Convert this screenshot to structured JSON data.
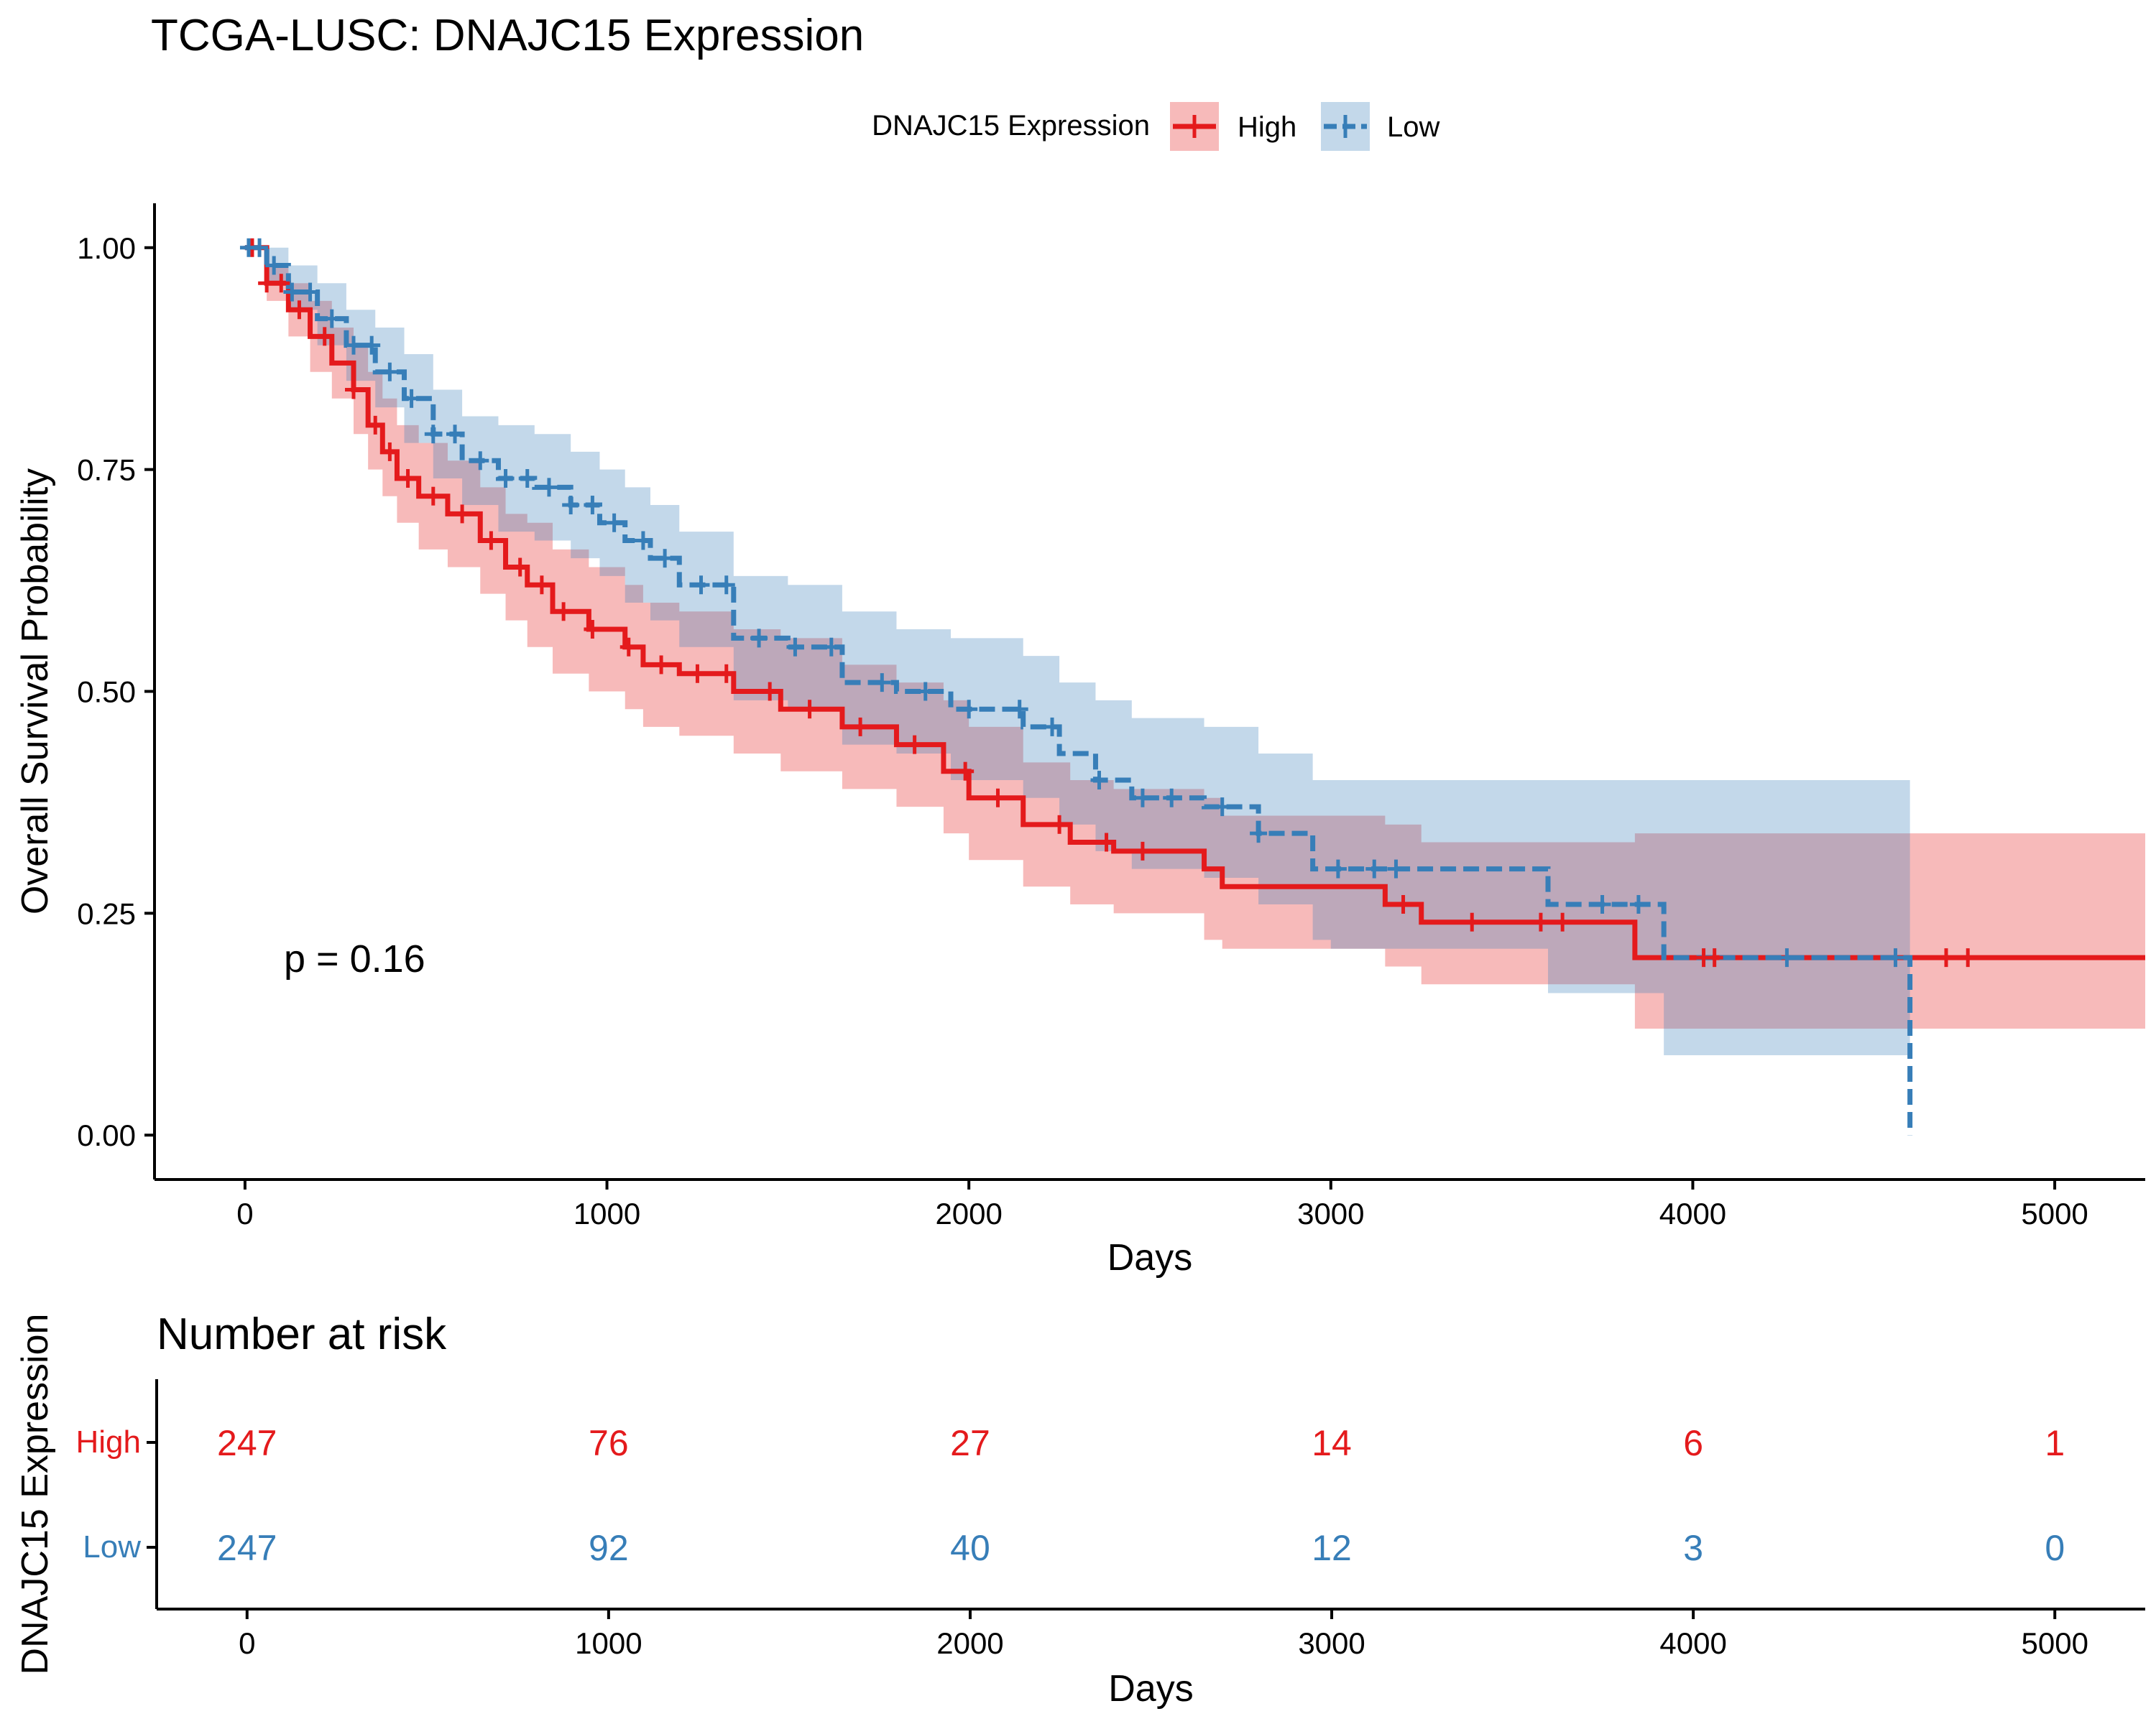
{
  "title": "TCGA-LUSC: DNAJC15 Expression",
  "legend": {
    "title": "DNAJC15 Expression",
    "placement": "top",
    "items": [
      {
        "label": "High",
        "color": "#E41A1C",
        "linestyle": "solid"
      },
      {
        "label": "Low",
        "color": "#377EB8",
        "linestyle": "dashed"
      }
    ]
  },
  "p_value_label": "p = 0.16",
  "chart_data": [
    {
      "type": "line",
      "subtype": "kaplan-meier step survival curve with confidence bands and censor marks",
      "title": "TCGA-LUSC: DNAJC15 Expression",
      "xlabel": "Days",
      "ylabel": "Overall Survival Probability",
      "xlim": [
        -250,
        5250
      ],
      "ylim": [
        -0.05,
        1.05
      ],
      "x_ticks": [
        0,
        1000,
        2000,
        3000,
        4000,
        5000
      ],
      "y_ticks": [
        0,
        0.25,
        0.5,
        0.75,
        1.0
      ],
      "y_tick_labels": [
        "0.00",
        "0.25",
        "0.50",
        "0.75",
        "1.00"
      ],
      "grid": false,
      "legend_placement": "top",
      "series": [
        {
          "name": "High",
          "color": "#E41A1C",
          "linestyle": "solid",
          "x": [
            0,
            60,
            120,
            180,
            240,
            300,
            340,
            380,
            420,
            480,
            560,
            650,
            720,
            780,
            850,
            950,
            1050,
            1100,
            1200,
            1350,
            1480,
            1650,
            1800,
            1930,
            2000,
            2150,
            2280,
            2400,
            2650,
            2700,
            3150,
            3250,
            3840,
            4000,
            4500,
            5250
          ],
          "y": [
            1.0,
            0.96,
            0.93,
            0.9,
            0.87,
            0.84,
            0.8,
            0.77,
            0.74,
            0.72,
            0.7,
            0.67,
            0.64,
            0.62,
            0.59,
            0.57,
            0.55,
            0.53,
            0.52,
            0.5,
            0.48,
            0.46,
            0.44,
            0.41,
            0.38,
            0.35,
            0.33,
            0.32,
            0.3,
            0.28,
            0.26,
            0.24,
            0.2,
            0.2,
            0.2,
            0.2
          ],
          "lower": [
            1.0,
            0.94,
            0.9,
            0.86,
            0.83,
            0.79,
            0.75,
            0.72,
            0.69,
            0.66,
            0.64,
            0.61,
            0.58,
            0.55,
            0.52,
            0.5,
            0.48,
            0.46,
            0.45,
            0.43,
            0.41,
            0.39,
            0.37,
            0.34,
            0.31,
            0.28,
            0.26,
            0.25,
            0.22,
            0.21,
            0.19,
            0.17,
            0.12,
            0.12,
            0.12,
            0.12
          ],
          "upper": [
            1.0,
            0.98,
            0.96,
            0.94,
            0.91,
            0.89,
            0.86,
            0.83,
            0.8,
            0.78,
            0.76,
            0.73,
            0.7,
            0.69,
            0.66,
            0.64,
            0.62,
            0.6,
            0.59,
            0.57,
            0.56,
            0.53,
            0.51,
            0.49,
            0.46,
            0.42,
            0.4,
            0.39,
            0.38,
            0.36,
            0.35,
            0.33,
            0.34,
            0.34,
            0.34,
            0.34
          ],
          "censor_x": [
            20,
            60,
            100,
            150,
            220,
            300,
            360,
            400,
            450,
            520,
            600,
            680,
            760,
            820,
            880,
            960,
            1060,
            1150,
            1250,
            1330,
            1450,
            1560,
            1700,
            1850,
            1990,
            2080,
            2250,
            2380,
            2480,
            3200,
            3390,
            3580,
            3640,
            4030,
            4060,
            4700,
            4760
          ]
        },
        {
          "name": "Low",
          "color": "#377EB8",
          "linestyle": "dashed",
          "x": [
            0,
            60,
            120,
            200,
            280,
            360,
            440,
            520,
            600,
            700,
            800,
            900,
            980,
            1050,
            1120,
            1200,
            1350,
            1500,
            1650,
            1800,
            1950,
            2150,
            2250,
            2350,
            2450,
            2650,
            2800,
            2950,
            3000,
            3600,
            3920,
            4000,
            4580,
            4600
          ],
          "y": [
            1.0,
            0.98,
            0.95,
            0.92,
            0.89,
            0.86,
            0.83,
            0.79,
            0.76,
            0.74,
            0.73,
            0.71,
            0.69,
            0.67,
            0.65,
            0.62,
            0.56,
            0.55,
            0.51,
            0.5,
            0.48,
            0.46,
            0.43,
            0.4,
            0.38,
            0.37,
            0.34,
            0.3,
            0.3,
            0.26,
            0.2,
            0.2,
            0.2,
            0.0
          ],
          "lower": [
            1.0,
            0.96,
            0.93,
            0.89,
            0.85,
            0.82,
            0.78,
            0.74,
            0.71,
            0.68,
            0.67,
            0.65,
            0.63,
            0.6,
            0.58,
            0.55,
            0.49,
            0.48,
            0.44,
            0.43,
            0.4,
            0.38,
            0.35,
            0.32,
            0.3,
            0.29,
            0.26,
            0.22,
            0.21,
            0.16,
            0.09,
            0.09,
            0.09,
            0.09
          ],
          "upper": [
            1.0,
            1.0,
            0.98,
            0.96,
            0.93,
            0.91,
            0.88,
            0.84,
            0.81,
            0.8,
            0.79,
            0.77,
            0.75,
            0.73,
            0.71,
            0.68,
            0.63,
            0.62,
            0.59,
            0.57,
            0.56,
            0.54,
            0.51,
            0.49,
            0.47,
            0.46,
            0.43,
            0.4,
            0.4,
            0.4,
            0.4,
            0.4,
            0.4,
            0.4
          ],
          "censor_x": [
            10,
            40,
            80,
            130,
            180,
            240,
            300,
            350,
            400,
            460,
            520,
            580,
            650,
            720,
            780,
            840,
            900,
            960,
            1020,
            1100,
            1160,
            1260,
            1330,
            1420,
            1520,
            1620,
            1760,
            1880,
            2000,
            2140,
            2230,
            2360,
            2480,
            2560,
            2700,
            2800,
            3020,
            3120,
            3180,
            3750,
            3850,
            4260,
            4560
          ]
        }
      ]
    },
    {
      "type": "table",
      "title": "Number at risk",
      "xlabel": "Days",
      "ylabel": "DNAJC15 Expression",
      "xlim": [
        -250,
        5250
      ],
      "x_ticks": [
        0,
        1000,
        2000,
        3000,
        4000,
        5000
      ],
      "rows": [
        {
          "label": "High",
          "color": "#E41A1C",
          "values": [
            247,
            76,
            27,
            14,
            6,
            1
          ]
        },
        {
          "label": "Low",
          "color": "#377EB8",
          "values": [
            247,
            92,
            40,
            12,
            3,
            0
          ]
        }
      ]
    }
  ]
}
